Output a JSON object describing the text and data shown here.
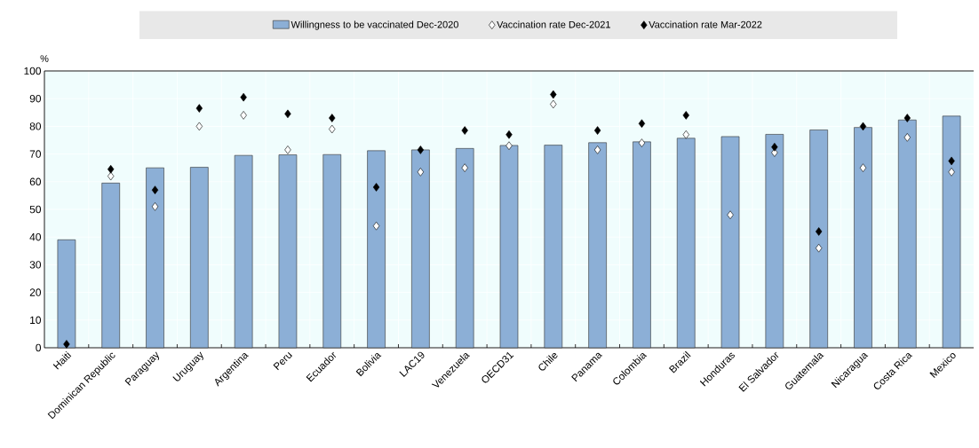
{
  "chart_data": {
    "type": "bar",
    "ylabel": "%",
    "categories": [
      "Haiti",
      "Dominican Republic",
      "Paraguay",
      "Uruguay",
      "Argentina",
      "Peru",
      "Ecuador",
      "Bolivia",
      "LAC19",
      "Venezuela",
      "OECD31",
      "Chile",
      "Panama",
      "Colombia",
      "Brazil",
      "Honduras",
      "El Salvador",
      "Guatemala",
      "Nicaragua",
      "Costa Rica",
      "Mexico"
    ],
    "series": [
      {
        "name": "Willingness to be vaccinated Dec-2020",
        "color": "#8cafd6",
        "values": [
          39,
          59.5,
          65,
          65.2,
          69.5,
          69.7,
          69.8,
          71.2,
          71.5,
          72,
          73.1,
          73.2,
          74.1,
          74.4,
          75.7,
          76.3,
          77.1,
          78.7,
          79.6,
          82.3,
          83.7
        ]
      },
      {
        "name": "Vaccination rate Dec-2021",
        "type": "scatter",
        "marker": "diamond",
        "color": "#ffffff",
        "values": [
          null,
          62,
          51,
          80,
          84,
          71.5,
          79,
          44,
          63.5,
          65,
          73,
          88,
          71.5,
          74,
          77,
          48,
          70.5,
          36,
          65,
          76,
          63.5
        ]
      },
      {
        "name": "Vaccination rate Mar-2022",
        "type": "scatter",
        "marker": "diamond",
        "color": "#000000",
        "values": [
          1.3,
          64.5,
          57,
          86.5,
          90.5,
          84.5,
          83,
          58,
          71.5,
          78.5,
          77,
          91.5,
          78.5,
          81,
          84,
          null,
          72.5,
          42,
          80,
          83,
          67.5
        ]
      }
    ],
    "ylim": [
      0,
      100
    ],
    "yticks": [
      0,
      10,
      20,
      30,
      40,
      50,
      60,
      70,
      80,
      90,
      100
    ],
    "grid": true,
    "legend": "top"
  }
}
